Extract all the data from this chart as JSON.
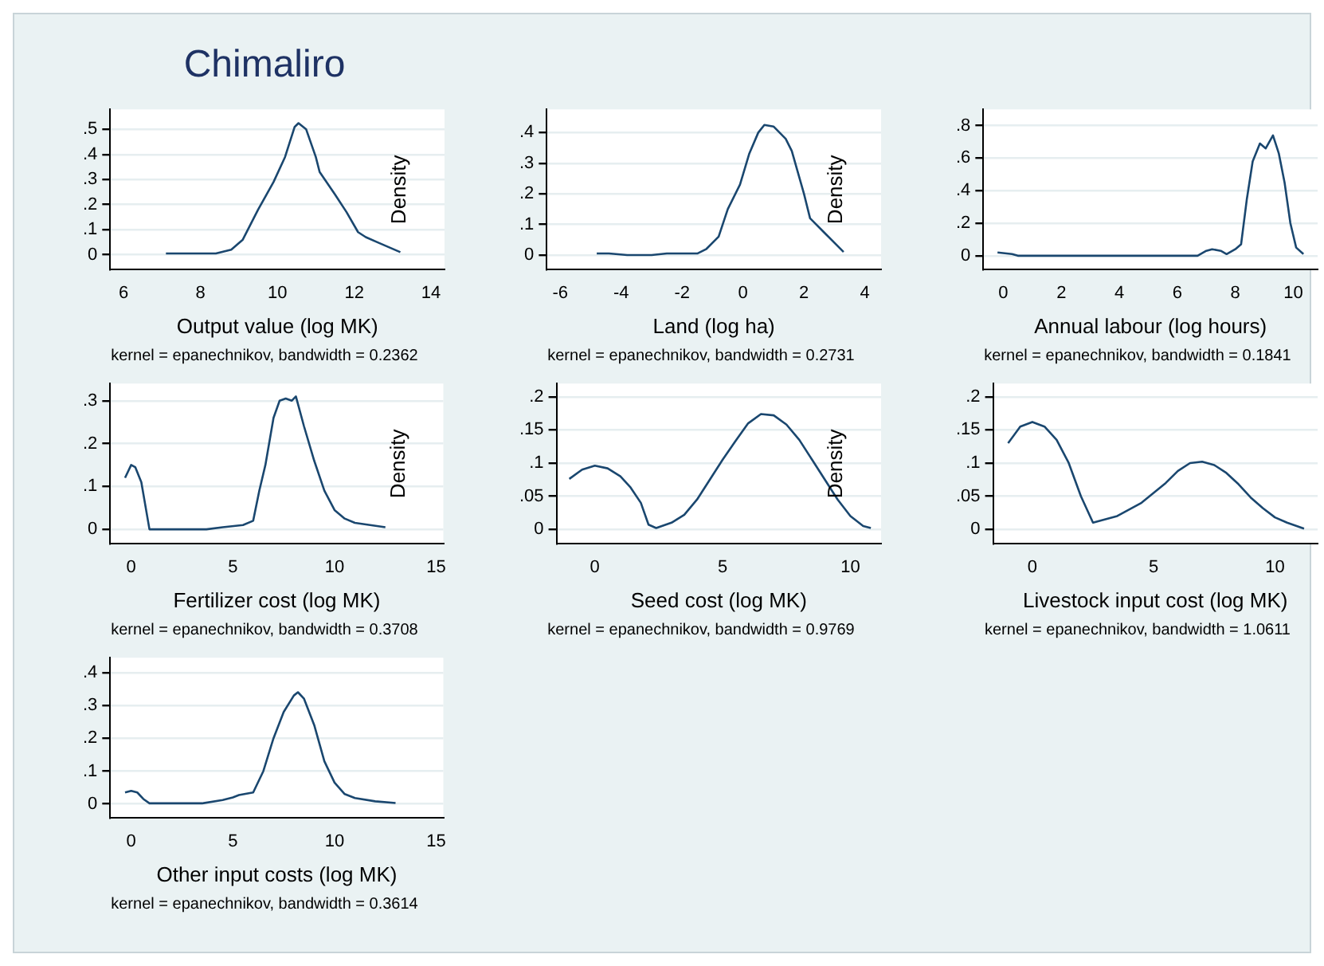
{
  "chart_data": [
    {
      "type": "line",
      "title": "Chimaliro",
      "xlabel": "Output value (log MK)",
      "ylabel": "Density",
      "annotations": [
        "kernel = epanechnikov, bandwidth = 0.2362"
      ],
      "color": "#1a476f",
      "marker": "none",
      "line_style": "solid",
      "grid": "y",
      "x": [
        7.1,
        8.4,
        8.8,
        9.1,
        9.5,
        9.9,
        10.2,
        10.45,
        10.55,
        10.75,
        11,
        11.1,
        11.5,
        11.8,
        12.1,
        12.3,
        12.6,
        13.2
      ],
      "values": [
        0.005,
        0.005,
        0.02,
        0.06,
        0.18,
        0.29,
        0.39,
        0.51,
        0.525,
        0.5,
        0.39,
        0.33,
        0.24,
        0.17,
        0.09,
        0.07,
        0.05,
        0.01
      ],
      "xlim": [
        5.65,
        14.35
      ],
      "xticks": [
        6,
        8,
        10,
        12,
        14
      ],
      "ylim": [
        -0.06,
        0.58
      ],
      "yticks": [
        {
          "value": 0,
          "label": "0"
        },
        {
          "value": 0.1,
          "label": ".1"
        },
        {
          "value": 0.2,
          "label": ".2"
        },
        {
          "value": 0.3,
          "label": ".3"
        },
        {
          "value": 0.4,
          "label": ".4"
        },
        {
          "value": 0.5,
          "label": ".5"
        }
      ]
    },
    {
      "type": "line",
      "xlabel": "Land (log ha)",
      "ylabel": "Density",
      "annotations": [
        "kernel = epanechnikov, bandwidth = 0.2731"
      ],
      "color": "#1a476f",
      "marker": "none",
      "line_style": "solid",
      "grid": "y",
      "x": [
        -4.8,
        -4.4,
        -3.8,
        -3,
        -2.5,
        -2,
        -1.5,
        -1.2,
        -0.8,
        -0.5,
        -0.1,
        0.2,
        0.5,
        0.7,
        1,
        1.4,
        1.6,
        2,
        2.2,
        2.6,
        3.3
      ],
      "values": [
        0.005,
        0.005,
        0,
        0,
        0.005,
        0.005,
        0.005,
        0.02,
        0.06,
        0.15,
        0.23,
        0.33,
        0.4,
        0.425,
        0.42,
        0.38,
        0.34,
        0.2,
        0.12,
        0.08,
        0.01
      ],
      "xlim": [
        -6.44,
        4.53
      ],
      "xticks": [
        -6,
        -4,
        -2,
        0,
        2,
        4
      ],
      "ylim": [
        -0.048,
        0.476
      ],
      "yticks": [
        {
          "value": 0,
          "label": "0"
        },
        {
          "value": 0.1,
          "label": ".1"
        },
        {
          "value": 0.2,
          "label": ".2"
        },
        {
          "value": 0.3,
          "label": ".3"
        },
        {
          "value": 0.4,
          "label": ".4"
        }
      ]
    },
    {
      "type": "line",
      "xlabel": "Annual labour (log hours)",
      "annotations": [
        "kernel = epanechnikov, bandwidth = 0.1841"
      ],
      "color": "#1a476f",
      "marker": "none",
      "line_style": "solid",
      "grid": "y",
      "x": [
        -0.2,
        0.3,
        0.5,
        6.7,
        7,
        7.2,
        7.5,
        7.7,
        8,
        8.2,
        8.4,
        8.6,
        8.85,
        9.05,
        9.3,
        9.5,
        9.7,
        9.9,
        10.1,
        10.35
      ],
      "values": [
        0.02,
        0.01,
        0,
        0,
        0.03,
        0.04,
        0.03,
        0.01,
        0.04,
        0.07,
        0.35,
        0.58,
        0.69,
        0.66,
        0.74,
        0.63,
        0.45,
        0.2,
        0.05,
        0.01
      ],
      "xlim": [
        -0.69,
        10.84
      ],
      "xticks": [
        0,
        2,
        4,
        6,
        8,
        10
      ],
      "ylim": [
        -0.086,
        0.9
      ],
      "yticks": [
        {
          "value": 0,
          "label": "0"
        },
        {
          "value": 0.2,
          "label": ".2"
        },
        {
          "value": 0.4,
          "label": ".4"
        },
        {
          "value": 0.6,
          "label": ".6"
        },
        {
          "value": 0.8,
          "label": ".8"
        }
      ]
    },
    {
      "type": "line",
      "xlabel": "Fertilizer cost (log MK)",
      "ylabel": "Density",
      "annotations": [
        "kernel = epanechnikov, bandwidth = 0.3708"
      ],
      "color": "#1a476f",
      "marker": "none",
      "line_style": "solid",
      "grid": "y",
      "x": [
        -0.3,
        0,
        0.2,
        0.5,
        0.9,
        3.7,
        4.5,
        5.5,
        6,
        6.3,
        6.6,
        7,
        7.3,
        7.6,
        7.9,
        8.1,
        8.5,
        9,
        9.5,
        10,
        10.5,
        11,
        12.5
      ],
      "values": [
        0.12,
        0.15,
        0.145,
        0.11,
        0,
        0,
        0.005,
        0.01,
        0.02,
        0.09,
        0.15,
        0.26,
        0.3,
        0.305,
        0.3,
        0.31,
        0.24,
        0.16,
        0.09,
        0.045,
        0.025,
        0.015,
        0.005
      ],
      "xlim": [
        -1.03,
        15.35
      ],
      "xticks": [
        0,
        5,
        10,
        15
      ],
      "ylim": [
        -0.034,
        0.34
      ],
      "yticks": [
        {
          "value": 0,
          "label": "0"
        },
        {
          "value": 0.1,
          "label": ".1"
        },
        {
          "value": 0.2,
          "label": ".2"
        },
        {
          "value": 0.3,
          "label": ".3"
        }
      ]
    },
    {
      "type": "line",
      "xlabel": "Seed cost (log MK)",
      "ylabel": "Density",
      "annotations": [
        "kernel = epanechnikov, bandwidth = 0.9769"
      ],
      "color": "#1a476f",
      "marker": "none",
      "line_style": "solid",
      "grid": "y",
      "x": [
        -1,
        -0.5,
        0,
        0.5,
        1,
        1.4,
        1.8,
        2.1,
        2.4,
        3,
        3.5,
        4,
        4.5,
        5,
        5.5,
        6,
        6.5,
        7,
        7.5,
        8,
        8.5,
        9,
        9.5,
        10,
        10.5,
        10.8
      ],
      "values": [
        0.076,
        0.09,
        0.096,
        0.092,
        0.08,
        0.063,
        0.04,
        0.007,
        0.002,
        0.01,
        0.022,
        0.045,
        0.075,
        0.105,
        0.133,
        0.16,
        0.174,
        0.172,
        0.158,
        0.135,
        0.105,
        0.075,
        0.045,
        0.02,
        0.005,
        0.002
      ],
      "xlim": [
        -1.5,
        11.2
      ],
      "xticks": [
        0,
        5,
        10
      ],
      "ylim": [
        -0.022,
        0.22
      ],
      "yticks": [
        {
          "value": 0,
          "label": "0"
        },
        {
          "value": 0.05,
          "label": ".05"
        },
        {
          "value": 0.1,
          "label": ".1"
        },
        {
          "value": 0.15,
          "label": ".15"
        },
        {
          "value": 0.2,
          "label": ".2"
        }
      ]
    },
    {
      "type": "line",
      "xlabel": "Livestock input cost (log MK)",
      "annotations": [
        "kernel = epanechnikov, bandwidth = 1.0611"
      ],
      "color": "#1a476f",
      "marker": "none",
      "line_style": "solid",
      "grid": "y",
      "x": [
        -1,
        -0.5,
        0,
        0.5,
        1,
        1.5,
        2,
        2.5,
        3.5,
        4.5,
        5.5,
        6,
        6.5,
        7,
        7.5,
        8,
        8.5,
        9,
        9.5,
        10,
        10.5,
        11.2
      ],
      "values": [
        0.13,
        0.155,
        0.162,
        0.155,
        0.135,
        0.1,
        0.05,
        0.01,
        0.02,
        0.04,
        0.07,
        0.088,
        0.1,
        0.102,
        0.097,
        0.085,
        0.068,
        0.048,
        0.032,
        0.018,
        0.01,
        0.001
      ],
      "xlim": [
        -1.62,
        11.76
      ],
      "xticks": [
        0,
        5,
        10
      ],
      "ylim": [
        -0.022,
        0.22
      ],
      "yticks": [
        {
          "value": 0,
          "label": "0"
        },
        {
          "value": 0.05,
          "label": ".05"
        },
        {
          "value": 0.1,
          "label": ".1"
        },
        {
          "value": 0.15,
          "label": ".15"
        },
        {
          "value": 0.2,
          "label": ".2"
        }
      ]
    },
    {
      "type": "line",
      "xlabel": "Other input costs (log MK)",
      "annotations": [
        "kernel = epanechnikov, bandwidth = 0.3614"
      ],
      "color": "#1a476f",
      "marker": "none",
      "line_style": "solid",
      "grid": "y",
      "x": [
        -0.3,
        0,
        0.3,
        0.6,
        0.9,
        3.5,
        4.5,
        5,
        5.3,
        6,
        6.5,
        7,
        7.5,
        8,
        8.2,
        8.5,
        9,
        9.5,
        10,
        10.5,
        11,
        12,
        13
      ],
      "values": [
        0.035,
        0.04,
        0.035,
        0.015,
        0.002,
        0.002,
        0.012,
        0.02,
        0.027,
        0.035,
        0.1,
        0.2,
        0.28,
        0.33,
        0.34,
        0.32,
        0.24,
        0.13,
        0.065,
        0.03,
        0.018,
        0.008,
        0.003
      ],
      "xlim": [
        -1.03,
        15.35
      ],
      "xticks": [
        0,
        5,
        10,
        15
      ],
      "ylim": [
        -0.043,
        0.445
      ],
      "yticks": [
        {
          "value": 0,
          "label": "0"
        },
        {
          "value": 0.1,
          "label": ".1"
        },
        {
          "value": 0.2,
          "label": ".2"
        },
        {
          "value": 0.3,
          "label": ".3"
        },
        {
          "value": 0.4,
          "label": ".4"
        }
      ]
    }
  ]
}
